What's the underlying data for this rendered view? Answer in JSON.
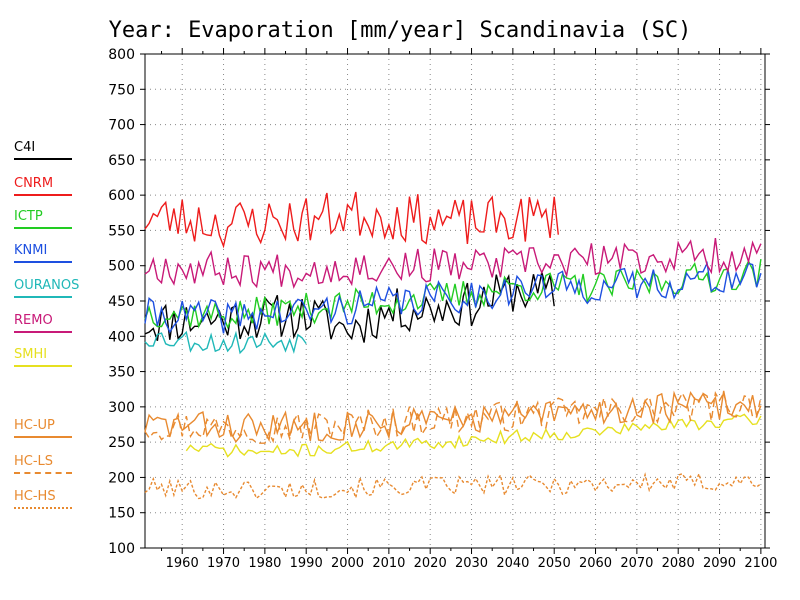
{
  "title": "Year: Evaporation [mm/year] Scandinavia (SC)",
  "chart_data": {
    "type": "line",
    "title": "Year: Evaporation [mm/year] Scandinavia (SC)",
    "xlabel": "",
    "ylabel": "",
    "xlim": [
      1951,
      2101
    ],
    "ylim": [
      100,
      800
    ],
    "x_ticks": [
      1960,
      1970,
      1980,
      1990,
      2000,
      2010,
      2020,
      2030,
      2040,
      2050,
      2060,
      2070,
      2080,
      2090,
      2100
    ],
    "y_ticks": [
      100,
      150,
      200,
      250,
      300,
      350,
      400,
      450,
      500,
      550,
      600,
      650,
      700,
      750,
      800
    ],
    "grid": true,
    "legend_position": "left",
    "series": [
      {
        "name": "C4I",
        "color": "#000000",
        "dash": "solid",
        "start": 1951,
        "end": 2050,
        "base": [
          [
            1951,
            420
          ],
          [
            1970,
            425
          ],
          [
            1990,
            430
          ],
          [
            2000,
            410
          ],
          [
            2010,
            435
          ],
          [
            2020,
            440
          ],
          [
            2030,
            445
          ],
          [
            2040,
            465
          ],
          [
            2050,
            460
          ]
        ],
        "amp": 32,
        "seed": 11
      },
      {
        "name": "CNRM",
        "color": "#ee1c1c",
        "dash": "solid",
        "start": 1951,
        "end": 2051,
        "base": [
          [
            1951,
            570
          ],
          [
            1970,
            560
          ],
          [
            1990,
            565
          ],
          [
            2000,
            575
          ],
          [
            2010,
            570
          ],
          [
            2020,
            565
          ],
          [
            2030,
            560
          ],
          [
            2040,
            565
          ],
          [
            2051,
            570
          ]
        ],
        "amp": 35,
        "seed": 23
      },
      {
        "name": "ICTP",
        "color": "#22cc22",
        "dash": "solid",
        "start": 1951,
        "end": 2100,
        "base": [
          [
            1951,
            435
          ],
          [
            1970,
            430
          ],
          [
            1990,
            440
          ],
          [
            2000,
            445
          ],
          [
            2010,
            450
          ],
          [
            2020,
            455
          ],
          [
            2030,
            460
          ],
          [
            2040,
            470
          ],
          [
            2060,
            470
          ],
          [
            2080,
            480
          ],
          [
            2100,
            490
          ]
        ],
        "amp": 22,
        "seed": 37
      },
      {
        "name": "KNMI",
        "color": "#1e50e0",
        "dash": "solid",
        "start": 1951,
        "end": 2100,
        "base": [
          [
            1951,
            430
          ],
          [
            1970,
            428
          ],
          [
            1990,
            435
          ],
          [
            2000,
            440
          ],
          [
            2010,
            448
          ],
          [
            2020,
            452
          ],
          [
            2030,
            458
          ],
          [
            2040,
            468
          ],
          [
            2060,
            470
          ],
          [
            2080,
            478
          ],
          [
            2100,
            485
          ]
        ],
        "amp": 24,
        "seed": 41
      },
      {
        "name": "OURANOS",
        "color": "#20b8b8",
        "dash": "solid",
        "start": 1951,
        "end": 1990,
        "base": [
          [
            1951,
            400
          ],
          [
            1970,
            390
          ],
          [
            1990,
            395
          ]
        ],
        "amp": 16,
        "seed": 53
      },
      {
        "name": "REMO",
        "color": "#c81a78",
        "dash": "solid",
        "start": 1951,
        "end": 2100,
        "base": [
          [
            1951,
            500
          ],
          [
            1970,
            495
          ],
          [
            1990,
            495
          ],
          [
            2010,
            500
          ],
          [
            2030,
            500
          ],
          [
            2050,
            505
          ],
          [
            2070,
            510
          ],
          [
            2090,
            515
          ],
          [
            2100,
            515
          ]
        ],
        "amp": 25,
        "seed": 67
      },
      {
        "name": "SMHI",
        "color": "#e6e020",
        "dash": "solid",
        "start": 1961,
        "end": 2100,
        "base": [
          [
            1961,
            242
          ],
          [
            1980,
            235
          ],
          [
            2000,
            242
          ],
          [
            2020,
            248
          ],
          [
            2040,
            258
          ],
          [
            2060,
            265
          ],
          [
            2080,
            275
          ],
          [
            2100,
            282
          ]
        ],
        "amp": 9,
        "seed": 71
      },
      {
        "name": "HC-UP",
        "color": "#e88a30",
        "dash": "solid",
        "start": 1951,
        "end": 2100,
        "base": [
          [
            1951,
            275
          ],
          [
            1980,
            270
          ],
          [
            2000,
            275
          ],
          [
            2020,
            280
          ],
          [
            2050,
            290
          ],
          [
            2080,
            300
          ],
          [
            2100,
            305
          ]
        ],
        "amp": 22,
        "seed": 83
      },
      {
        "name": "HC-LS",
        "color": "#e88a30",
        "dash": "long-dash",
        "start": 1951,
        "end": 2100,
        "base": [
          [
            1951,
            275
          ],
          [
            1980,
            270
          ],
          [
            2000,
            275
          ],
          [
            2020,
            282
          ],
          [
            2050,
            290
          ],
          [
            2080,
            298
          ],
          [
            2100,
            305
          ]
        ],
        "amp": 22,
        "seed": 97
      },
      {
        "name": "HC-HS",
        "color": "#e88a30",
        "dash": "short-dash",
        "start": 1951,
        "end": 2100,
        "base": [
          [
            1951,
            185
          ],
          [
            1980,
            182
          ],
          [
            2000,
            185
          ],
          [
            2020,
            188
          ],
          [
            2050,
            190
          ],
          [
            2080,
            192
          ],
          [
            2100,
            195
          ]
        ],
        "amp": 14,
        "seed": 101
      }
    ]
  }
}
